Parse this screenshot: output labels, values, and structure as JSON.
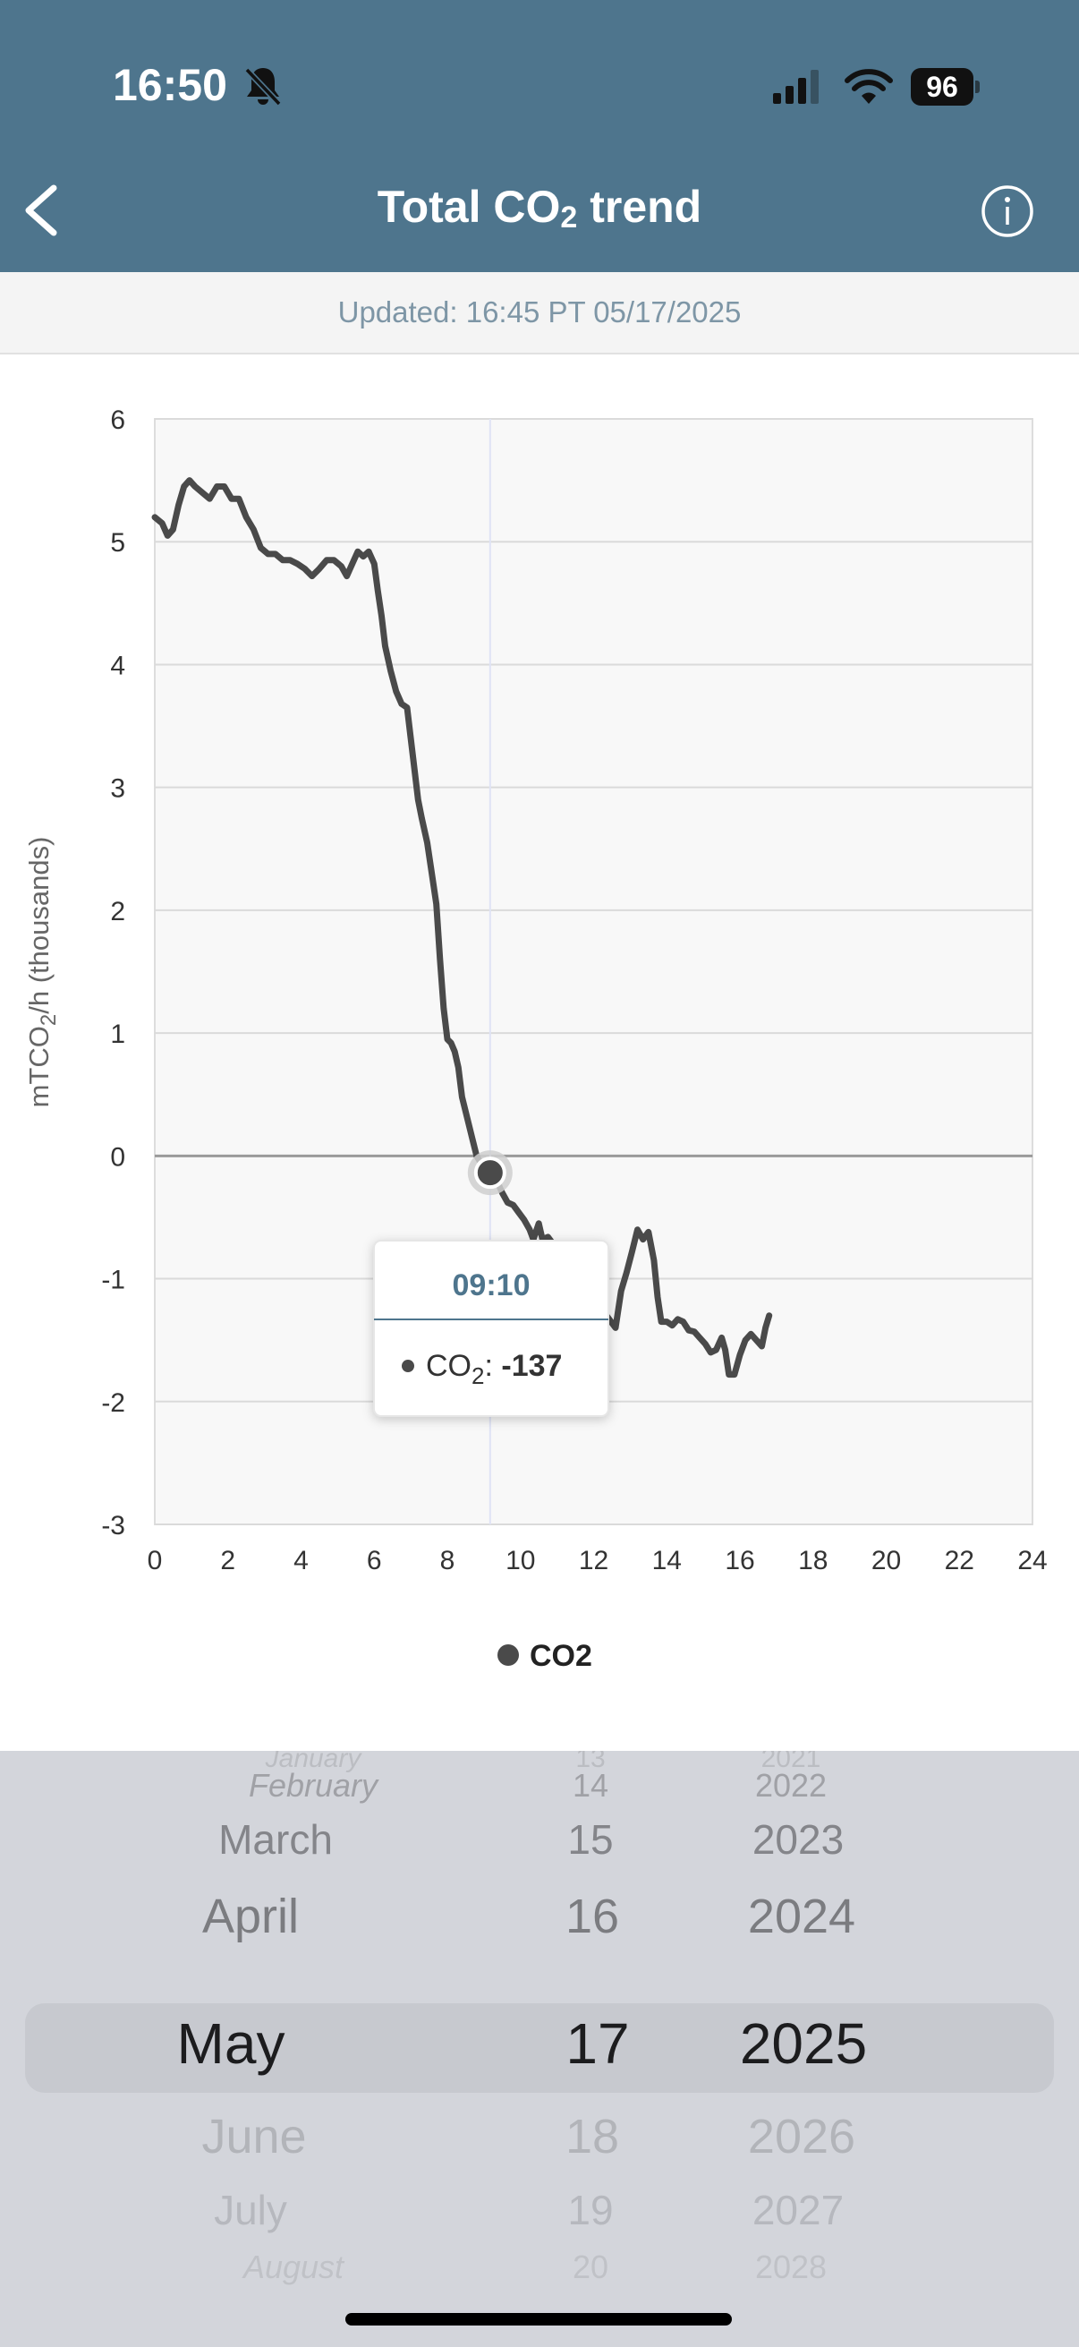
{
  "status_bar": {
    "time": "16:50",
    "battery": "96"
  },
  "header": {
    "title_main": "Total CO",
    "title_sub": "2",
    "title_tail": " trend"
  },
  "updated": "Updated: 16:45 PT 05/17/2025",
  "tooltip": {
    "time": "09:10",
    "label": "CO",
    "label_sub": "2",
    "value": "-137"
  },
  "legend": {
    "name": "CO2"
  },
  "colors": {
    "header": "#4e758d",
    "line": "#4a4a4a",
    "tooltip_time": "#4e758d"
  },
  "chart_data": {
    "type": "line",
    "ylabel_main": "mTCO",
    "ylabel_sub": "2",
    "ylabel_tail": "/h (thousands)",
    "xlim": [
      0,
      24
    ],
    "ylim": [
      -3,
      6
    ],
    "x_ticks": [
      "0",
      "2",
      "4",
      "6",
      "8",
      "10",
      "12",
      "14",
      "16",
      "18",
      "20",
      "22",
      "24"
    ],
    "y_ticks": [
      "6",
      "5",
      "4",
      "3",
      "2",
      "1",
      "0",
      "-1",
      "-2",
      "-3"
    ],
    "series": [
      {
        "name": "CO2",
        "points": [
          [
            0,
            5.2
          ],
          [
            0.2,
            5.15
          ],
          [
            0.35,
            5.05
          ],
          [
            0.5,
            5.1
          ],
          [
            0.65,
            5.3
          ],
          [
            0.8,
            5.45
          ],
          [
            0.95,
            5.5
          ],
          [
            1.1,
            5.45
          ],
          [
            1.3,
            5.4
          ],
          [
            1.5,
            5.35
          ],
          [
            1.7,
            5.45
          ],
          [
            1.9,
            5.45
          ],
          [
            2.1,
            5.35
          ],
          [
            2.3,
            5.35
          ],
          [
            2.5,
            5.2
          ],
          [
            2.7,
            5.1
          ],
          [
            2.9,
            4.95
          ],
          [
            3.1,
            4.9
          ],
          [
            3.3,
            4.9
          ],
          [
            3.5,
            4.85
          ],
          [
            3.7,
            4.85
          ],
          [
            3.9,
            4.82
          ],
          [
            4.1,
            4.78
          ],
          [
            4.3,
            4.72
          ],
          [
            4.5,
            4.78
          ],
          [
            4.7,
            4.85
          ],
          [
            4.9,
            4.85
          ],
          [
            5.1,
            4.8
          ],
          [
            5.25,
            4.72
          ],
          [
            5.4,
            4.82
          ],
          [
            5.55,
            4.92
          ],
          [
            5.7,
            4.88
          ],
          [
            5.85,
            4.92
          ],
          [
            6.0,
            4.82
          ],
          [
            6.1,
            4.6
          ],
          [
            6.2,
            4.4
          ],
          [
            6.3,
            4.15
          ],
          [
            6.45,
            3.95
          ],
          [
            6.6,
            3.78
          ],
          [
            6.75,
            3.68
          ],
          [
            6.9,
            3.65
          ],
          [
            7.0,
            3.4
          ],
          [
            7.1,
            3.15
          ],
          [
            7.2,
            2.9
          ],
          [
            7.3,
            2.75
          ],
          [
            7.45,
            2.55
          ],
          [
            7.55,
            2.35
          ],
          [
            7.7,
            2.05
          ],
          [
            7.8,
            1.6
          ],
          [
            7.9,
            1.2
          ],
          [
            8.0,
            0.95
          ],
          [
            8.1,
            0.92
          ],
          [
            8.2,
            0.85
          ],
          [
            8.3,
            0.72
          ],
          [
            8.4,
            0.48
          ],
          [
            8.55,
            0.3
          ],
          [
            8.7,
            0.12
          ],
          [
            8.8,
            0
          ],
          [
            8.9,
            -0.05
          ],
          [
            9.0,
            -0.1
          ],
          [
            9.17,
            -0.137
          ],
          [
            9.35,
            -0.2
          ],
          [
            9.5,
            -0.3
          ],
          [
            9.65,
            -0.38
          ],
          [
            9.8,
            -0.4
          ],
          [
            9.95,
            -0.46
          ],
          [
            10.1,
            -0.52
          ],
          [
            10.25,
            -0.6
          ],
          [
            10.35,
            -0.68
          ],
          [
            10.5,
            -0.55
          ],
          [
            10.6,
            -0.68
          ],
          [
            10.75,
            -0.66
          ],
          [
            12.6,
            -1.4
          ],
          [
            12.75,
            -1.1
          ],
          [
            12.9,
            -0.95
          ],
          [
            13.05,
            -0.78
          ],
          [
            13.2,
            -0.6
          ],
          [
            13.35,
            -0.68
          ],
          [
            13.5,
            -0.62
          ],
          [
            13.65,
            -0.85
          ],
          [
            13.75,
            -1.15
          ],
          [
            13.85,
            -1.35
          ],
          [
            14.0,
            -1.35
          ],
          [
            14.15,
            -1.38
          ],
          [
            14.3,
            -1.33
          ],
          [
            14.45,
            -1.35
          ],
          [
            14.6,
            -1.42
          ],
          [
            14.75,
            -1.43
          ],
          [
            14.9,
            -1.48
          ],
          [
            15.05,
            -1.53
          ],
          [
            15.2,
            -1.6
          ],
          [
            15.35,
            -1.58
          ],
          [
            15.5,
            -1.48
          ],
          [
            15.6,
            -1.58
          ],
          [
            15.7,
            -1.78
          ],
          [
            15.85,
            -1.78
          ],
          [
            16.0,
            -1.62
          ],
          [
            16.15,
            -1.5
          ],
          [
            16.3,
            -1.45
          ],
          [
            16.45,
            -1.5
          ],
          [
            16.6,
            -1.55
          ],
          [
            16.7,
            -1.4
          ],
          [
            16.8,
            -1.3
          ]
        ]
      }
    ]
  },
  "picker": {
    "months": [
      "January",
      "February",
      "March",
      "April",
      "May",
      "June",
      "July",
      "August"
    ],
    "days": [
      "13",
      "14",
      "15",
      "16",
      "17",
      "18",
      "19",
      "20"
    ],
    "years": [
      "2021",
      "2022",
      "2023",
      "2024",
      "2025",
      "2026",
      "2027",
      "2028"
    ]
  }
}
